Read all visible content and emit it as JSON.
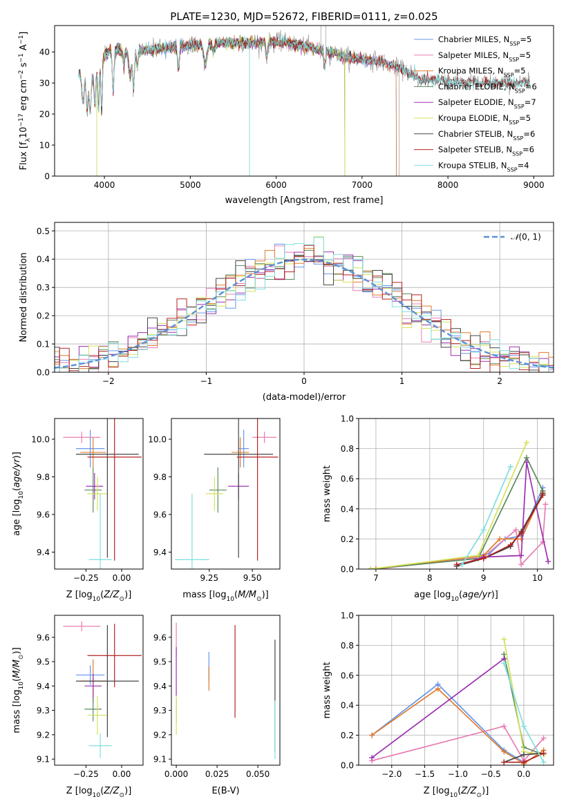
{
  "chart_data": [
    {
      "id": "spectrum",
      "type": "line",
      "title": "PLATE=1230, MJD=52672, FIBERID=0111, z=0.025",
      "xlabel": "wavelength [Angstrom, rest frame]",
      "ylabel": "Flux [f_λ 10^-17 erg cm^-2 s^-1 A^-1]",
      "xlim": [
        3420,
        9230
      ],
      "ylim": [
        0,
        48.5
      ],
      "xticks": [
        4000,
        5000,
        6000,
        7000,
        8000,
        9000
      ],
      "yticks": [
        0,
        10,
        20,
        30,
        40
      ],
      "continuum": [
        [
          3700,
          33
        ],
        [
          3800,
          31
        ],
        [
          3900,
          33
        ],
        [
          4000,
          39
        ],
        [
          4100,
          41
        ],
        [
          4300,
          40
        ],
        [
          4600,
          41
        ],
        [
          5000,
          42
        ],
        [
          5400,
          43
        ],
        [
          5800,
          43
        ],
        [
          6100,
          43
        ],
        [
          6300,
          42
        ],
        [
          6600,
          40
        ],
        [
          6900,
          38
        ],
        [
          7200,
          37
        ],
        [
          7500,
          34
        ],
        [
          7700,
          31
        ],
        [
          7900,
          31
        ],
        [
          8200,
          30
        ],
        [
          8500,
          30
        ],
        [
          8800,
          30
        ],
        [
          8950,
          30
        ]
      ],
      "spectrum_range": [
        3700,
        8950
      ],
      "legend": "top-right",
      "series": [
        {
          "name": "Chabrier MILES, N_SSP=5",
          "color": "#6495ed",
          "range": [
            3700,
            7400
          ]
        },
        {
          "name": "Salpeter MILES, N_SSP=5",
          "color": "#e87cb3",
          "range": [
            3700,
            7400
          ]
        },
        {
          "name": "Kroupa MILES, N_SSP=5",
          "color": "#e07b2c",
          "range": [
            3700,
            7400
          ]
        },
        {
          "name": "Chabrier ELODIE, N_SSP=6",
          "color": "#5b8a5b",
          "range": [
            3900,
            6800
          ]
        },
        {
          "name": "Salpeter ELODIE, N_SSP=7",
          "color": "#9b30b0",
          "range": [
            3900,
            6800
          ]
        },
        {
          "name": "Kroupa ELODIE, N_SSP=5",
          "color": "#d4e157",
          "range": [
            3900,
            6800
          ]
        },
        {
          "name": "Chabrier STELIB, N_SSP=6",
          "color": "#444444",
          "range": [
            3700,
            8950
          ]
        },
        {
          "name": "Salpeter STELIB, N_SSP=6",
          "color": "#b22222",
          "range": [
            3700,
            8950
          ]
        },
        {
          "name": "Kroupa STELIB, N_SSP=4",
          "color": "#7fdede",
          "range": [
            3700,
            8950
          ]
        }
      ]
    },
    {
      "id": "residuals",
      "type": "histogram",
      "xlabel": "(data-model)/error",
      "ylabel": "Normed distribution",
      "xlim": [
        -2.55,
        2.55
      ],
      "ylim": [
        0,
        0.53
      ],
      "xticks": [
        -2,
        -1,
        0,
        1,
        2
      ],
      "yticks": [
        0.0,
        0.1,
        0.2,
        0.3,
        0.4,
        0.5
      ],
      "bin_width": 0.1,
      "reference": {
        "name": "N(0,1)",
        "color": "#5b8fd6"
      },
      "legend": "top-right"
    },
    {
      "id": "age-vs-Z",
      "type": "errorbar",
      "xlabel": "Z [log10(Z/Z☉)]",
      "ylabel": "age  [log10(age/yr)]",
      "xlim": [
        -0.47,
        0.15
      ],
      "ylim": [
        9.31,
        10.11
      ],
      "xticks": [
        -0.25,
        0.0
      ],
      "yticks": [
        9.4,
        9.6,
        9.8,
        10.0
      ],
      "points": [
        {
          "x": -0.22,
          "xerr": 0.1,
          "y": 9.95,
          "yerr": 0.1,
          "color": "#6495ed"
        },
        {
          "x": -0.28,
          "xerr": 0.13,
          "y": 10.01,
          "yerr": 0.03,
          "color": "#e87cb3"
        },
        {
          "x": -0.2,
          "xerr": 0.09,
          "y": 9.93,
          "yerr": 0.08,
          "color": "#e07b2c"
        },
        {
          "x": -0.2,
          "xerr": 0.06,
          "y": 9.73,
          "yerr": 0.12,
          "color": "#5b8a5b"
        },
        {
          "x": -0.19,
          "xerr": 0.06,
          "y": 9.75,
          "yerr": 0.07,
          "color": "#9b30b0"
        },
        {
          "x": -0.17,
          "xerr": 0.07,
          "y": 9.71,
          "yerr": 0.09,
          "color": "#d4e157"
        },
        {
          "x": -0.1,
          "xerr": 0.22,
          "y": 9.92,
          "yerr": 0.55,
          "color": "#444444"
        },
        {
          "x": -0.05,
          "xerr": 0.19,
          "y": 9.905,
          "yerr": 0.55,
          "color": "#b22222"
        },
        {
          "x": -0.15,
          "xerr": 0.08,
          "y": 9.36,
          "yerr": 0.35,
          "color": "#7fdede"
        }
      ]
    },
    {
      "id": "age-vs-mass",
      "type": "errorbar",
      "xlabel": "mass [log10(M/M☉)]",
      "ylabel": "",
      "xlim": [
        9.03,
        9.66
      ],
      "ylim": [
        9.31,
        10.11
      ],
      "xticks": [
        9.25,
        9.5
      ],
      "yticks": [
        9.4,
        9.6,
        9.8,
        10.0
      ],
      "points": [
        {
          "x": 9.45,
          "xerr": 0.03,
          "y": 9.95,
          "yerr": 0.1,
          "color": "#6495ed"
        },
        {
          "x": 9.57,
          "xerr": 0.07,
          "y": 10.01,
          "yerr": 0.03,
          "color": "#e87cb3"
        },
        {
          "x": 9.43,
          "xerr": 0.05,
          "y": 9.93,
          "yerr": 0.08,
          "color": "#e07b2c"
        },
        {
          "x": 9.3,
          "xerr": 0.05,
          "y": 9.73,
          "yerr": 0.12,
          "color": "#5b8a5b"
        },
        {
          "x": 9.42,
          "xerr": 0.06,
          "y": 9.75,
          "yerr": 0.07,
          "color": "#9b30b0"
        },
        {
          "x": 9.28,
          "xerr": 0.05,
          "y": 9.71,
          "yerr": 0.09,
          "color": "#d4e157"
        },
        {
          "x": 9.42,
          "xerr": 0.2,
          "y": 9.92,
          "yerr": 0.55,
          "color": "#444444"
        },
        {
          "x": 9.53,
          "xerr": 0.12,
          "y": 9.905,
          "yerr": 0.55,
          "color": "#b22222"
        },
        {
          "x": 9.15,
          "xerr": 0.1,
          "y": 9.36,
          "yerr": 0.35,
          "color": "#7fdede"
        }
      ]
    },
    {
      "id": "mass-weight-vs-age",
      "type": "line",
      "xlabel": "age  [log10(age/yr)]",
      "ylabel": "mass weight",
      "xlim": [
        6.68,
        10.3
      ],
      "ylim": [
        0,
        1.0
      ],
      "xticks": [
        7,
        8,
        9,
        10
      ],
      "yticks": [
        0.0,
        0.2,
        0.4,
        0.6,
        0.8,
        1.0
      ],
      "series": [
        {
          "color": "#6495ed",
          "x": [
            7.0,
            9.1,
            9.4,
            9.7,
            10.1
          ],
          "y": [
            0.0,
            0.1,
            0.2,
            0.22,
            0.54
          ]
        },
        {
          "color": "#e87cb3",
          "x": [
            7.0,
            9.0,
            9.6,
            9.7,
            10.1,
            10.15
          ],
          "y": [
            0.0,
            0.08,
            0.26,
            0.03,
            0.18,
            0.43
          ]
        },
        {
          "color": "#e07b2c",
          "x": [
            7.0,
            9.0,
            9.3,
            9.7,
            10.1
          ],
          "y": [
            0.0,
            0.09,
            0.2,
            0.2,
            0.51
          ]
        },
        {
          "color": "#5b8a5b",
          "x": [
            6.9,
            8.9,
            9.8,
            10.1
          ],
          "y": [
            0.0,
            0.07,
            0.74,
            0.52
          ]
        },
        {
          "color": "#9b30b0",
          "x": [
            8.5,
            9.0,
            9.7,
            9.8,
            10.2
          ],
          "y": [
            0.02,
            0.08,
            0.09,
            0.71,
            0.05
          ]
        },
        {
          "color": "#d4e157",
          "x": [
            6.9,
            8.9,
            9.8
          ],
          "y": [
            0.0,
            0.09,
            0.84
          ]
        },
        {
          "color": "#444444",
          "x": [
            8.5,
            9.0,
            9.5,
            9.7,
            10.1
          ],
          "y": [
            0.02,
            0.07,
            0.15,
            0.25,
            0.5
          ]
        },
        {
          "color": "#b22222",
          "x": [
            8.5,
            9.0,
            9.5,
            9.7,
            10.1
          ],
          "y": [
            0.03,
            0.07,
            0.16,
            0.24,
            0.49
          ]
        },
        {
          "color": "#7fdede",
          "x": [
            8.6,
            9.0,
            9.5
          ],
          "y": [
            0.03,
            0.26,
            0.68
          ]
        }
      ]
    },
    {
      "id": "mass-vs-Z",
      "type": "errorbar",
      "xlabel": "Z [log10(Z/Z☉)]",
      "ylabel": "mass [log10(M/M☉)]",
      "xlim": [
        -0.47,
        0.15
      ],
      "ylim": [
        9.075,
        9.69
      ],
      "xticks": [
        -0.25,
        0.0
      ],
      "yticks": [
        9.1,
        9.2,
        9.3,
        9.4,
        9.5,
        9.6
      ],
      "points": [
        {
          "x": -0.22,
          "xerr": 0.1,
          "y": 9.445,
          "yerr": 0.04,
          "color": "#6495ed"
        },
        {
          "x": -0.28,
          "xerr": 0.13,
          "y": 9.645,
          "yerr": 0.02,
          "color": "#e87cb3"
        },
        {
          "x": -0.2,
          "xerr": 0.09,
          "y": 9.42,
          "yerr": 0.09,
          "color": "#e07b2c"
        },
        {
          "x": -0.2,
          "xerr": 0.06,
          "y": 9.305,
          "yerr": 0.05,
          "color": "#5b8a5b"
        },
        {
          "x": -0.2,
          "xerr": 0.06,
          "y": 9.4,
          "yerr": 0.05,
          "color": "#9b30b0"
        },
        {
          "x": -0.17,
          "xerr": 0.07,
          "y": 9.28,
          "yerr": 0.08,
          "color": "#d4e157"
        },
        {
          "x": -0.1,
          "xerr": 0.22,
          "y": 9.42,
          "yerr": 0.23,
          "color": "#444444"
        },
        {
          "x": -0.05,
          "xerr": 0.19,
          "y": 9.525,
          "yerr": 0.13,
          "color": "#b22222"
        },
        {
          "x": -0.15,
          "xerr": 0.08,
          "y": 9.155,
          "yerr": 0.05,
          "color": "#7fdede"
        }
      ]
    },
    {
      "id": "mass-vs-ebv",
      "type": "errorbar",
      "xlabel": "E(B-V)",
      "ylabel": "",
      "xlim": [
        -0.003,
        0.0635
      ],
      "ylim": [
        9.075,
        9.69
      ],
      "xticks": [
        0.0,
        0.025,
        0.05
      ],
      "xtick_labels": [
        "0.000",
        "0.025",
        "0.050"
      ],
      "yticks": [
        9.1,
        9.2,
        9.3,
        9.4,
        9.5,
        9.6
      ],
      "points": [
        {
          "x": 0.02,
          "y": 9.48,
          "yerr": 0.06,
          "color": "#6495ed"
        },
        {
          "x": 0.0,
          "y": 9.59,
          "yerr": 0.07,
          "color": "#e87cb3"
        },
        {
          "x": 0.02,
          "y": 9.43,
          "yerr": 0.05,
          "color": "#e07b2c"
        },
        {
          "x": 0.0,
          "y": 9.3,
          "yerr": 0.05,
          "color": "#5b8a5b"
        },
        {
          "x": 0.0,
          "y": 9.46,
          "yerr": 0.1,
          "color": "#9b30b0"
        },
        {
          "x": 0.0,
          "y": 9.28,
          "yerr": 0.08,
          "color": "#d4e157"
        },
        {
          "x": 0.0605,
          "y": 9.36,
          "yerr": 0.23,
          "color": "#444444"
        },
        {
          "x": 0.036,
          "y": 9.46,
          "yerr": 0.19,
          "color": "#b22222"
        },
        {
          "x": 0.0605,
          "y": 9.22,
          "yerr": 0.12,
          "color": "#7fdede"
        }
      ]
    },
    {
      "id": "mass-weight-vs-Z",
      "type": "line",
      "xlabel": "Z [log10(Z/Z☉)]",
      "ylabel": "mass weight",
      "xlim": [
        -2.5,
        0.45
      ],
      "ylim": [
        0,
        1.0
      ],
      "xticks": [
        -2.0,
        -1.5,
        -1.0,
        -0.5,
        0.0
      ],
      "yticks": [
        0.0,
        0.2,
        0.4,
        0.6,
        0.8,
        1.0
      ],
      "series": [
        {
          "color": "#6495ed",
          "x": [
            -2.3,
            -1.3,
            -0.3,
            0.0,
            0.3
          ],
          "y": [
            0.2,
            0.54,
            0.1,
            0.02,
            0.08
          ]
        },
        {
          "color": "#e87cb3",
          "x": [
            -2.3,
            -0.3,
            0.0,
            0.3
          ],
          "y": [
            0.03,
            0.26,
            0.03,
            0.18
          ]
        },
        {
          "color": "#e07b2c",
          "x": [
            -2.3,
            -1.3,
            -0.3,
            0.0,
            0.3
          ],
          "y": [
            0.2,
            0.51,
            0.09,
            0.01,
            0.1
          ]
        },
        {
          "color": "#5b8a5b",
          "x": [
            -0.3,
            0.0,
            0.3
          ],
          "y": [
            0.74,
            0.12,
            0.07
          ]
        },
        {
          "color": "#9b30b0",
          "x": [
            -2.3,
            -0.3
          ],
          "y": [
            0.05,
            0.71
          ]
        },
        {
          "color": "#d4e157",
          "x": [
            -0.3,
            0.0,
            0.3
          ],
          "y": [
            0.84,
            0.09,
            0.07
          ]
        },
        {
          "color": "#444444",
          "x": [
            -0.3,
            0.0,
            0.3
          ],
          "y": [
            0.02,
            0.07,
            0.08
          ]
        },
        {
          "color": "#b22222",
          "x": [
            -0.3,
            0.0,
            0.3
          ],
          "y": [
            0.02,
            0.02,
            0.08
          ]
        },
        {
          "color": "#7fdede",
          "x": [
            -0.3,
            0.0,
            0.3
          ],
          "y": [
            0.68,
            0.26,
            0.02
          ]
        }
      ]
    }
  ]
}
